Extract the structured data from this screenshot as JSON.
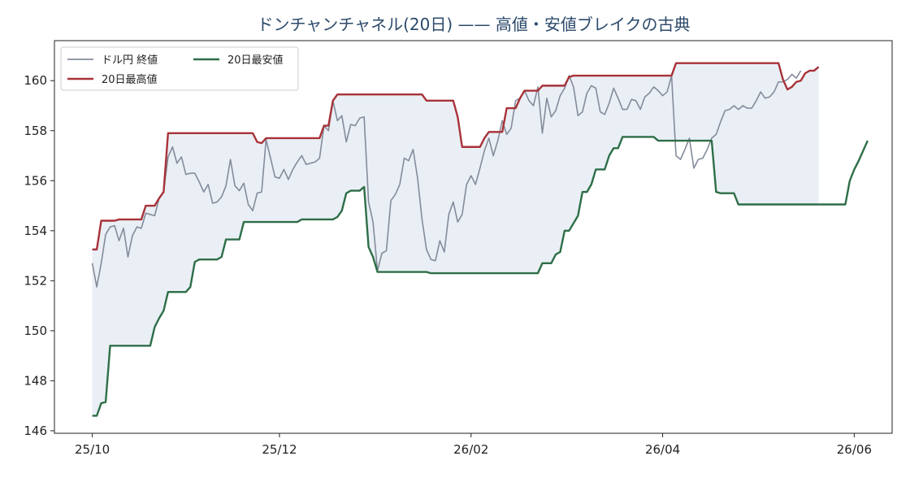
{
  "chart_data": {
    "type": "line",
    "title": "ドンチャンチャネル(20日) —— 高値・安値ブレイクの古典",
    "xlabel": "",
    "ylabel": "",
    "ylim": [
      145.9,
      161.6
    ],
    "yticks": [
      146,
      148,
      150,
      152,
      154,
      156,
      158,
      160
    ],
    "xticks": [
      {
        "label": "25/10",
        "t": 0
      },
      {
        "label": "25/12",
        "t": 42
      },
      {
        "label": "26/02",
        "t": 85
      },
      {
        "label": "26/04",
        "t": 128
      },
      {
        "label": "26/06",
        "t": 171
      }
    ],
    "xlim": [
      -8.5,
      179.5
    ],
    "grid": false,
    "legend": {
      "position": "top-left",
      "columns": 2
    },
    "colors": {
      "close": "#858b9b",
      "upper": "#a83238",
      "lower": "#2e6e48",
      "band": "#e9eff5"
    },
    "series": [
      {
        "name": "ドル円 終値",
        "key": "close",
        "values": [
          152.7,
          151.75,
          152.7,
          153.85,
          154.15,
          154.2,
          153.6,
          154.1,
          152.95,
          153.8,
          154.15,
          154.1,
          154.7,
          154.65,
          154.6,
          155.3,
          155.55,
          156.95,
          157.35,
          156.7,
          156.95,
          156.25,
          156.3,
          156.3,
          155.95,
          155.55,
          155.85,
          155.1,
          155.15,
          155.35,
          155.8,
          156.85,
          155.8,
          155.6,
          155.9,
          155.05,
          154.8,
          155.5,
          155.55,
          157.65,
          156.9,
          156.15,
          156.1,
          156.45,
          156.05,
          156.45,
          156.75,
          157.0,
          156.65,
          156.7,
          156.75,
          156.9,
          158.2,
          158.0,
          159.2,
          158.4,
          158.6,
          157.55,
          158.25,
          158.2,
          158.5,
          158.55,
          155.15,
          154.35,
          152.4,
          153.1,
          153.2,
          155.2,
          155.45,
          155.85,
          156.9,
          156.8,
          157.25,
          156.1,
          154.45,
          153.25,
          152.85,
          152.8,
          153.6,
          153.15,
          154.65,
          155.15,
          154.35,
          154.65,
          155.85,
          156.2,
          155.85,
          156.5,
          157.2,
          157.7,
          157.0,
          157.6,
          158.4,
          157.85,
          158.1,
          159.2,
          159.3,
          159.6,
          159.2,
          159.0,
          159.75,
          157.9,
          159.3,
          158.55,
          158.8,
          159.4,
          159.7,
          160.2,
          159.75,
          158.6,
          158.75,
          159.5,
          159.8,
          159.7,
          158.75,
          158.65,
          159.1,
          159.7,
          159.3,
          158.85,
          158.85,
          159.25,
          159.2,
          158.85,
          159.35,
          159.5,
          159.75,
          159.6,
          159.4,
          159.55,
          160.2,
          157.0,
          156.85,
          157.25,
          157.7,
          156.5,
          156.85,
          156.9,
          157.25,
          157.7,
          157.85,
          158.35,
          158.8,
          158.85,
          159.0,
          158.85,
          159.0,
          158.9,
          158.9,
          159.2,
          159.55,
          159.3,
          159.35,
          159.55,
          159.95,
          159.95,
          160.05,
          160.25,
          160.1,
          160.4
        ]
      },
      {
        "name": "20日最高値",
        "key": "upper",
        "values": [
          153.25,
          153.25,
          154.4,
          154.4,
          154.4,
          154.4,
          154.45,
          154.45,
          154.45,
          154.45,
          154.45,
          154.45,
          155.0,
          155.0,
          155.0,
          155.3,
          155.55,
          157.9,
          157.9,
          157.9,
          157.9,
          157.9,
          157.9,
          157.9,
          157.9,
          157.9,
          157.9,
          157.9,
          157.9,
          157.9,
          157.9,
          157.9,
          157.9,
          157.9,
          157.9,
          157.9,
          157.9,
          157.55,
          157.5,
          157.7,
          157.7,
          157.7,
          157.7,
          157.7,
          157.7,
          157.7,
          157.7,
          157.7,
          157.7,
          157.7,
          157.7,
          157.7,
          158.2,
          158.2,
          159.2,
          159.45,
          159.45,
          159.45,
          159.45,
          159.45,
          159.45,
          159.45,
          159.45,
          159.45,
          159.45,
          159.45,
          159.45,
          159.45,
          159.45,
          159.45,
          159.45,
          159.45,
          159.45,
          159.45,
          159.45,
          159.2,
          159.2,
          159.2,
          159.2,
          159.2,
          159.2,
          159.2,
          158.55,
          157.35,
          157.35,
          157.35,
          157.35,
          157.35,
          157.7,
          157.95,
          157.95,
          157.95,
          157.95,
          158.9,
          158.9,
          158.9,
          159.3,
          159.6,
          159.6,
          159.6,
          159.6,
          159.8,
          159.8,
          159.8,
          159.8,
          159.8,
          159.8,
          160.15,
          160.2,
          160.2,
          160.2,
          160.2,
          160.2,
          160.2,
          160.2,
          160.2,
          160.2,
          160.2,
          160.2,
          160.2,
          160.2,
          160.2,
          160.2,
          160.2,
          160.2,
          160.2,
          160.2,
          160.2,
          160.2,
          160.2,
          160.2,
          160.7,
          160.7,
          160.7,
          160.7,
          160.7,
          160.7,
          160.7,
          160.7,
          160.7,
          160.7,
          160.7,
          160.7,
          160.7,
          160.7,
          160.7,
          160.7,
          160.7,
          160.7,
          160.7,
          160.7,
          160.7,
          160.7,
          160.7,
          160.7,
          160.05,
          159.65,
          159.75,
          159.95,
          160.0,
          160.3,
          160.4,
          160.4,
          160.55
        ]
      },
      {
        "name": "20日最安値",
        "key": "lower",
        "values": [
          146.6,
          146.6,
          147.1,
          147.15,
          149.4,
          149.4,
          149.4,
          149.4,
          149.4,
          149.4,
          149.4,
          149.4,
          149.4,
          149.4,
          150.15,
          150.5,
          150.8,
          151.55,
          151.55,
          151.55,
          151.55,
          151.55,
          151.75,
          152.75,
          152.85,
          152.85,
          152.85,
          152.85,
          152.85,
          152.95,
          153.65,
          153.65,
          153.65,
          153.65,
          154.35,
          154.35,
          154.35,
          154.35,
          154.35,
          154.35,
          154.35,
          154.35,
          154.35,
          154.35,
          154.35,
          154.35,
          154.35,
          154.45,
          154.45,
          154.45,
          154.45,
          154.45,
          154.45,
          154.45,
          154.45,
          154.55,
          154.8,
          155.5,
          155.6,
          155.6,
          155.6,
          155.75,
          153.35,
          152.95,
          152.35,
          152.35,
          152.35,
          152.35,
          152.35,
          152.35,
          152.35,
          152.35,
          152.35,
          152.35,
          152.35,
          152.35,
          152.3,
          152.3,
          152.3,
          152.3,
          152.3,
          152.3,
          152.3,
          152.3,
          152.3,
          152.3,
          152.3,
          152.3,
          152.3,
          152.3,
          152.3,
          152.3,
          152.3,
          152.3,
          152.3,
          152.3,
          152.3,
          152.3,
          152.3,
          152.3,
          152.3,
          152.7,
          152.7,
          152.7,
          153.05,
          153.15,
          154.0,
          154.0,
          154.3,
          154.6,
          155.55,
          155.55,
          155.85,
          156.45,
          156.45,
          156.45,
          157.0,
          157.3,
          157.3,
          157.75,
          157.75,
          157.75,
          157.75,
          157.75,
          157.75,
          157.75,
          157.75,
          157.6,
          157.6,
          157.6,
          157.6,
          157.6,
          157.6,
          157.6,
          157.6,
          157.6,
          157.6,
          157.6,
          157.6,
          157.6,
          155.55,
          155.5,
          155.5,
          155.5,
          155.5,
          155.05,
          155.05,
          155.05,
          155.05,
          155.05,
          155.05,
          155.05,
          155.05,
          155.05,
          155.05,
          155.05,
          155.05,
          155.05,
          155.05,
          155.05,
          155.05,
          155.05,
          155.05,
          155.05,
          155.05,
          155.05,
          155.05,
          155.05,
          155.05,
          155.05,
          156.0,
          156.45,
          156.8,
          157.2,
          157.6
        ]
      }
    ]
  }
}
